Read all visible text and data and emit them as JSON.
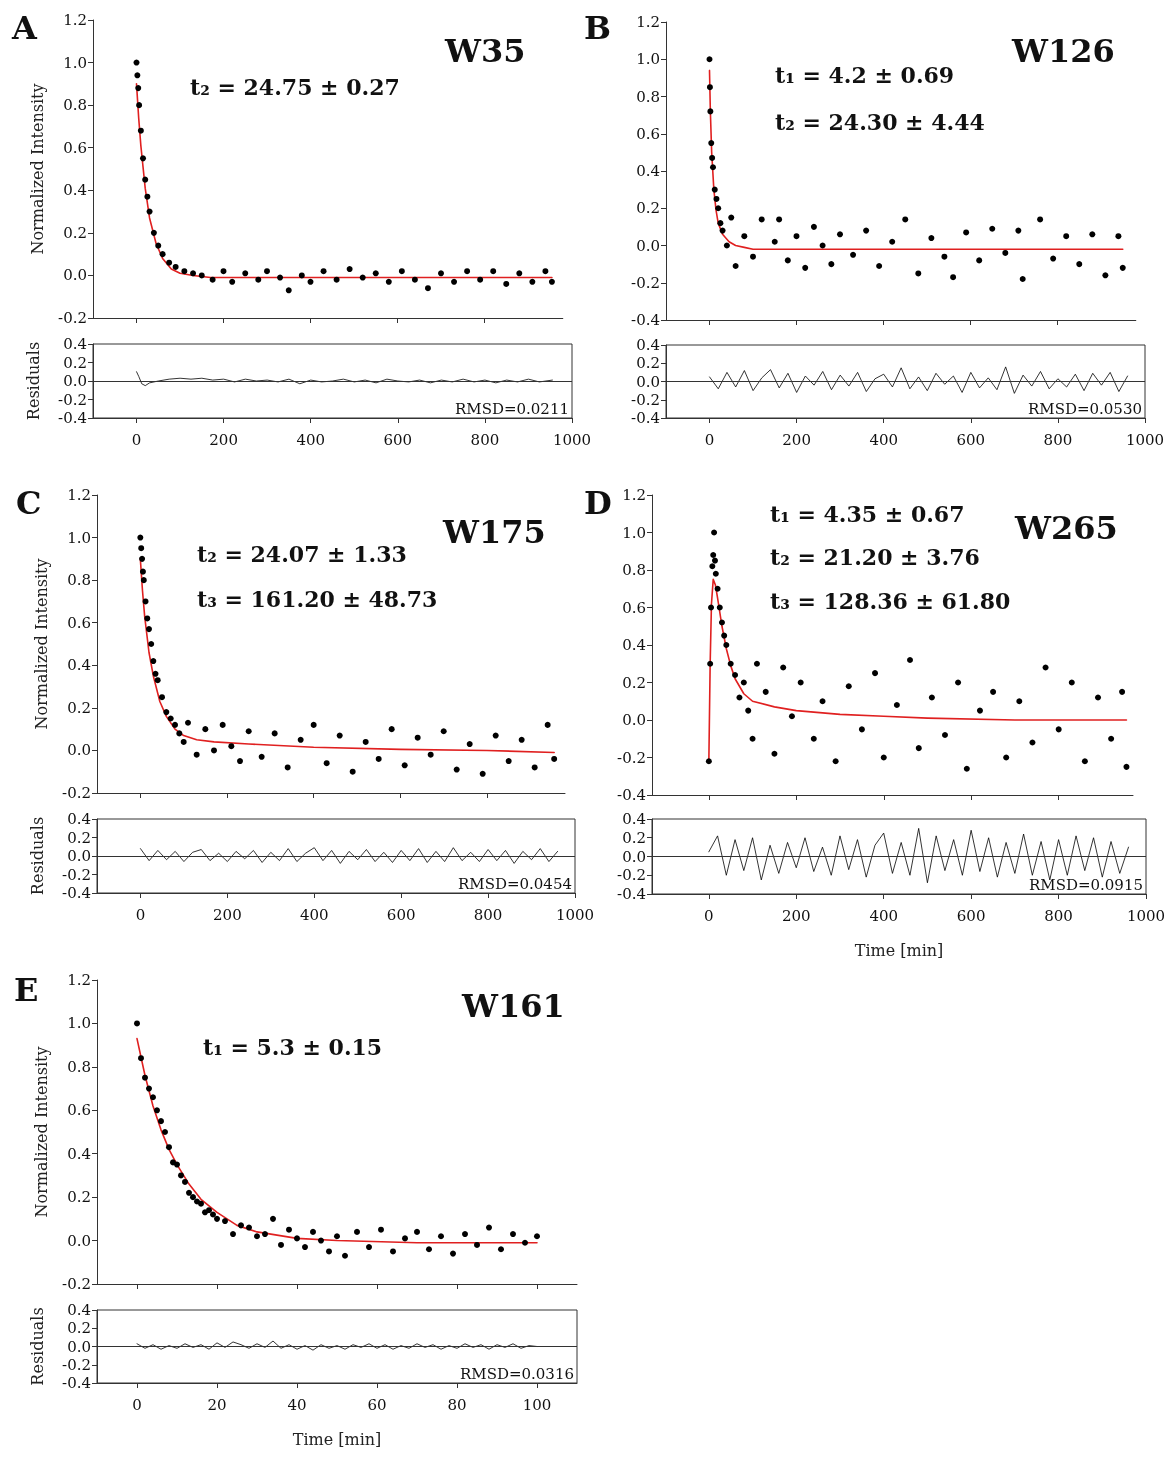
{
  "chart_data": [
    {
      "type": "scatter",
      "title": "W35",
      "ylabel": "Normalized Intensity",
      "annotations": [
        "A",
        "t₂ = 24.75 ± 0.27"
      ],
      "xlim": [
        -100,
        980
      ],
      "ylim": [
        -0.2,
        1.2
      ],
      "xticks": [
        0,
        200,
        400,
        600,
        800
      ],
      "yticks": [
        {
          "value": -0.2,
          "label": "-0.2"
        },
        {
          "value": 0,
          "label": "0.0"
        },
        {
          "value": 0.2,
          "label": "0.2"
        },
        {
          "value": 0.4,
          "label": "0.4"
        },
        {
          "value": 0.6,
          "label": "0.6"
        },
        {
          "value": 0.8,
          "label": "0.8"
        },
        {
          "value": 1,
          "label": "1.0"
        },
        {
          "value": 1.2,
          "label": "1.2"
        }
      ],
      "tick_labels": "y",
      "marker": "circle",
      "series": [
        {
          "type": "scatter",
          "color": "#000000",
          "x": [
            0,
            2,
            4,
            6,
            10,
            15,
            20,
            25,
            30,
            40,
            50,
            60,
            75,
            90,
            110,
            130,
            150,
            175,
            200,
            220,
            250,
            280,
            300,
            330,
            350,
            380,
            400,
            430,
            460,
            490,
            520,
            550,
            580,
            610,
            640,
            670,
            700,
            730,
            760,
            790,
            820,
            850,
            880,
            910,
            940,
            955
          ],
          "values": [
            1.0,
            0.94,
            0.88,
            0.8,
            0.68,
            0.55,
            0.45,
            0.37,
            0.3,
            0.2,
            0.14,
            0.1,
            0.06,
            0.04,
            0.02,
            0.01,
            0.0,
            -0.02,
            0.02,
            -0.03,
            0.01,
            -0.02,
            0.02,
            -0.01,
            -0.07,
            0.0,
            -0.03,
            0.02,
            -0.02,
            0.03,
            -0.01,
            0.01,
            -0.03,
            0.02,
            -0.02,
            -0.06,
            0.01,
            -0.03,
            0.02,
            -0.02,
            0.02,
            -0.04,
            0.01,
            -0.03,
            0.02,
            -0.03
          ]
        },
        {
          "type": "line",
          "marker": "none",
          "color": "#e02020",
          "x": [
            0,
            5,
            10,
            20,
            30,
            45,
            60,
            80,
            100,
            130,
            170,
            250,
            400,
            600,
            800,
            955
          ],
          "values": [
            0.9,
            0.74,
            0.61,
            0.41,
            0.27,
            0.15,
            0.08,
            0.03,
            0.01,
            0.0,
            -0.01,
            -0.01,
            -0.01,
            -0.01,
            -0.01,
            -0.01
          ]
        }
      ]
    },
    {
      "type": "line",
      "ylabel": "Residuals",
      "annotations": [
        "RMSD=0.0211"
      ],
      "xlim": [
        -100,
        1000
      ],
      "ylim": [
        -0.4,
        0.4
      ],
      "xticks": [
        0,
        200,
        400,
        600,
        800,
        1000
      ],
      "yticks": [
        {
          "value": -0.4,
          "label": "-0.4"
        },
        {
          "value": -0.2,
          "label": "-0.2"
        },
        {
          "value": 0,
          "label": "0.0"
        },
        {
          "value": 0.2,
          "label": "0.2"
        },
        {
          "value": 0.4,
          "label": "0.4"
        }
      ],
      "marker": "none",
      "ref_lines": [
        {
          "axis": "y",
          "value": 0
        }
      ],
      "series": [
        {
          "color": "#000000",
          "x": [
            0,
            5,
            12,
            20,
            30,
            50,
            75,
            100,
            125,
            150,
            175,
            200,
            225,
            250,
            275,
            300,
            325,
            350,
            375,
            400,
            425,
            450,
            475,
            500,
            525,
            550,
            575,
            600,
            625,
            650,
            675,
            700,
            725,
            750,
            775,
            800,
            825,
            850,
            875,
            900,
            925,
            955
          ],
          "values": [
            0.1,
            0.05,
            -0.03,
            -0.05,
            -0.02,
            0.0,
            0.02,
            0.03,
            0.02,
            0.03,
            0.01,
            0.02,
            -0.01,
            0.02,
            0.0,
            0.01,
            -0.01,
            0.02,
            -0.03,
            0.01,
            -0.01,
            0.0,
            0.02,
            -0.01,
            0.01,
            -0.02,
            0.02,
            0.0,
            -0.01,
            0.01,
            -0.02,
            0.01,
            -0.01,
            0.02,
            -0.01,
            0.01,
            -0.02,
            0.01,
            -0.01,
            0.02,
            -0.01,
            0.01
          ]
        }
      ]
    },
    {
      "type": "scatter",
      "title": "W126",
      "annotations": [
        "B",
        "t₁ = 4.2 ± 0.69",
        "t₂ = 24.30 ± 4.44"
      ],
      "xlim": [
        -100,
        980
      ],
      "ylim": [
        -0.4,
        1.2
      ],
      "xticks": [
        0,
        200,
        400,
        600,
        800
      ],
      "yticks": [
        {
          "value": -0.4,
          "label": "-0.4"
        },
        {
          "value": -0.2,
          "label": "-0.2"
        },
        {
          "value": 0,
          "label": "0.0"
        },
        {
          "value": 0.2,
          "label": "0.2"
        },
        {
          "value": 0.4,
          "label": "0.4"
        },
        {
          "value": 0.6,
          "label": "0.6"
        },
        {
          "value": 0.8,
          "label": "0.8"
        },
        {
          "value": 1,
          "label": "1.0"
        },
        {
          "value": 1.2,
          "label": "1.2"
        }
      ],
      "tick_labels": "y",
      "marker": "circle",
      "series": [
        {
          "type": "scatter",
          "color": "#000000",
          "x": [
            0,
            1,
            2,
            4,
            6,
            8,
            12,
            16,
            20,
            25,
            30,
            40,
            50,
            60,
            80,
            100,
            120,
            150,
            160,
            180,
            200,
            220,
            240,
            260,
            280,
            300,
            330,
            360,
            390,
            420,
            450,
            480,
            510,
            540,
            560,
            590,
            620,
            650,
            680,
            710,
            720,
            760,
            790,
            820,
            850,
            880,
            910,
            940,
            950
          ],
          "values": [
            1.0,
            0.85,
            0.72,
            0.55,
            0.47,
            0.42,
            0.3,
            0.25,
            0.2,
            0.12,
            0.08,
            0.0,
            0.15,
            -0.11,
            0.05,
            -0.06,
            0.14,
            0.02,
            0.14,
            -0.08,
            0.05,
            -0.12,
            0.1,
            0.0,
            -0.1,
            0.06,
            -0.05,
            0.08,
            -0.11,
            0.02,
            0.14,
            -0.15,
            0.04,
            -0.06,
            -0.17,
            0.07,
            -0.08,
            0.09,
            -0.04,
            0.08,
            -0.18,
            0.14,
            -0.07,
            0.05,
            -0.1,
            0.06,
            -0.16,
            0.05,
            -0.12
          ]
        },
        {
          "type": "line",
          "marker": "none",
          "color": "#e02020",
          "x": [
            0,
            2,
            5,
            10,
            15,
            20,
            30,
            45,
            60,
            80,
            100,
            150,
            300,
            500,
            700,
            950
          ],
          "values": [
            0.94,
            0.72,
            0.5,
            0.3,
            0.19,
            0.12,
            0.06,
            0.02,
            0.0,
            -0.01,
            -0.02,
            -0.02,
            -0.02,
            -0.02,
            -0.02,
            -0.02
          ]
        }
      ]
    },
    {
      "type": "line",
      "annotations": [
        "RMSD=0.0530"
      ],
      "xlim": [
        -100,
        1000
      ],
      "ylim": [
        -0.4,
        0.4
      ],
      "xticks": [
        0,
        200,
        400,
        600,
        800,
        1000
      ],
      "yticks": [
        {
          "value": -0.4,
          "label": "-0.4"
        },
        {
          "value": -0.2,
          "label": "-0.2"
        },
        {
          "value": 0,
          "label": "0.0"
        },
        {
          "value": 0.2,
          "label": "0.2"
        },
        {
          "value": 0.4,
          "label": "0.4"
        }
      ],
      "marker": "none",
      "ref_lines": [
        {
          "axis": "y",
          "value": 0
        }
      ],
      "series": [
        {
          "color": "#000000",
          "x": [
            0,
            20,
            40,
            60,
            80,
            100,
            120,
            140,
            160,
            180,
            200,
            220,
            240,
            260,
            280,
            300,
            320,
            340,
            360,
            380,
            400,
            420,
            440,
            460,
            480,
            500,
            520,
            540,
            560,
            580,
            600,
            620,
            640,
            660,
            680,
            700,
            720,
            740,
            760,
            780,
            800,
            820,
            840,
            860,
            880,
            900,
            920,
            940,
            960
          ],
          "values": [
            0.05,
            -0.08,
            0.1,
            -0.06,
            0.12,
            -0.1,
            0.04,
            0.13,
            -0.07,
            0.09,
            -0.12,
            0.06,
            -0.04,
            0.11,
            -0.09,
            0.07,
            -0.05,
            0.1,
            -0.11,
            0.03,
            0.08,
            -0.06,
            0.15,
            -0.08,
            0.05,
            -0.1,
            0.09,
            -0.03,
            0.06,
            -0.12,
            0.1,
            -0.07,
            0.04,
            -0.09,
            0.16,
            -0.13,
            0.07,
            -0.05,
            0.11,
            -0.08,
            0.03,
            -0.06,
            0.08,
            -0.1,
            0.09,
            -0.04,
            0.1,
            -0.11,
            0.06
          ]
        }
      ]
    },
    {
      "type": "scatter",
      "title": "W175",
      "ylabel": "Normalized Intensity",
      "annotations": [
        "C",
        "t₂ = 24.07 ± 1.33",
        "t₃ = 161.20 ± 48.73"
      ],
      "xlim": [
        -100,
        980
      ],
      "ylim": [
        -0.2,
        1.2
      ],
      "xticks": [
        0,
        200,
        400,
        600,
        800
      ],
      "yticks": [
        {
          "value": -0.2,
          "label": "-0.2"
        },
        {
          "value": 0,
          "label": "0.0"
        },
        {
          "value": 0.2,
          "label": "0.2"
        },
        {
          "value": 0.4,
          "label": "0.4"
        },
        {
          "value": 0.6,
          "label": "0.6"
        },
        {
          "value": 0.8,
          "label": "0.8"
        },
        {
          "value": 1,
          "label": "1.0"
        },
        {
          "value": 1.2,
          "label": "1.2"
        }
      ],
      "tick_labels": "y",
      "marker": "circle",
      "series": [
        {
          "type": "scatter",
          "color": "#000000",
          "x": [
            0,
            2,
            4,
            6,
            8,
            12,
            16,
            20,
            25,
            30,
            35,
            40,
            50,
            60,
            70,
            80,
            90,
            100,
            110,
            130,
            150,
            170,
            190,
            210,
            230,
            250,
            280,
            310,
            340,
            370,
            400,
            430,
            460,
            490,
            520,
            550,
            580,
            610,
            640,
            670,
            700,
            730,
            760,
            790,
            820,
            850,
            880,
            910,
            940,
            955
          ],
          "values": [
            1.0,
            0.95,
            0.9,
            0.84,
            0.8,
            0.7,
            0.62,
            0.57,
            0.5,
            0.42,
            0.36,
            0.33,
            0.25,
            0.18,
            0.15,
            0.12,
            0.08,
            0.04,
            0.13,
            -0.02,
            0.1,
            0.0,
            0.12,
            0.02,
            -0.05,
            0.09,
            -0.03,
            0.08,
            -0.08,
            0.05,
            0.12,
            -0.06,
            0.07,
            -0.1,
            0.04,
            -0.04,
            0.1,
            -0.07,
            0.06,
            -0.02,
            0.09,
            -0.09,
            0.03,
            -0.11,
            0.07,
            -0.05,
            0.05,
            -0.08,
            0.12,
            -0.04
          ]
        },
        {
          "type": "line",
          "marker": "none",
          "color": "#e02020",
          "x": [
            0,
            5,
            10,
            20,
            30,
            45,
            60,
            80,
            100,
            130,
            170,
            250,
            400,
            600,
            800,
            955
          ],
          "values": [
            0.9,
            0.75,
            0.63,
            0.46,
            0.35,
            0.23,
            0.16,
            0.1,
            0.07,
            0.05,
            0.04,
            0.03,
            0.015,
            0.005,
            0.0,
            -0.01
          ]
        }
      ]
    },
    {
      "type": "line",
      "ylabel": "Residuals",
      "annotations": [
        "RMSD=0.0454"
      ],
      "xlim": [
        -100,
        1000
      ],
      "ylim": [
        -0.4,
        0.4
      ],
      "xticks": [
        0,
        200,
        400,
        600,
        800,
        1000
      ],
      "yticks": [
        {
          "value": -0.4,
          "label": "-0.4"
        },
        {
          "value": -0.2,
          "label": "-0.2"
        },
        {
          "value": 0,
          "label": "0.0"
        },
        {
          "value": 0.2,
          "label": "0.2"
        },
        {
          "value": 0.4,
          "label": "0.4"
        }
      ],
      "marker": "none",
      "ref_lines": [
        {
          "axis": "y",
          "value": 0
        }
      ],
      "series": [
        {
          "color": "#000000",
          "x": [
            0,
            20,
            40,
            60,
            80,
            100,
            120,
            140,
            160,
            180,
            200,
            220,
            240,
            260,
            280,
            300,
            320,
            340,
            360,
            380,
            400,
            420,
            440,
            460,
            480,
            500,
            520,
            540,
            560,
            580,
            600,
            620,
            640,
            660,
            680,
            700,
            720,
            740,
            760,
            780,
            800,
            820,
            840,
            860,
            880,
            900,
            920,
            940,
            960
          ],
          "values": [
            0.08,
            -0.05,
            0.06,
            -0.04,
            0.05,
            -0.06,
            0.04,
            0.07,
            -0.05,
            0.03,
            -0.06,
            0.05,
            -0.03,
            0.06,
            -0.07,
            0.04,
            -0.05,
            0.08,
            -0.06,
            0.03,
            0.09,
            -0.05,
            0.06,
            -0.08,
            0.05,
            -0.04,
            0.07,
            -0.06,
            0.04,
            -0.07,
            0.06,
            -0.05,
            0.08,
            -0.07,
            0.05,
            -0.06,
            0.09,
            -0.05,
            0.04,
            -0.06,
            0.07,
            -0.05,
            0.06,
            -0.08,
            0.05,
            -0.04,
            0.08,
            -0.06,
            0.05
          ]
        }
      ]
    },
    {
      "type": "scatter",
      "title": "W265",
      "annotations": [
        "D",
        "t₁ = 4.35 ± 0.67",
        "t₂ = 21.20 ± 3.76",
        "t₃ = 128.36 ± 61.80"
      ],
      "xlim": [
        -130,
        970
      ],
      "ylim": [
        -0.4,
        1.2
      ],
      "xticks": [
        0,
        200,
        400,
        600,
        800
      ],
      "yticks": [
        {
          "value": -0.4,
          "label": "-0.4"
        },
        {
          "value": -0.2,
          "label": "-0.2"
        },
        {
          "value": 0,
          "label": "0.0"
        },
        {
          "value": 0.2,
          "label": "0.2"
        },
        {
          "value": 0.4,
          "label": "0.4"
        },
        {
          "value": 0.6,
          "label": "0.6"
        },
        {
          "value": 0.8,
          "label": "0.8"
        },
        {
          "value": 1,
          "label": "1.0"
        },
        {
          "value": 1.2,
          "label": "1.2"
        }
      ],
      "tick_labels": "y",
      "marker": "circle",
      "series": [
        {
          "type": "scatter",
          "color": "#000000",
          "x": [
            0,
            3,
            5,
            8,
            10,
            12,
            14,
            16,
            20,
            25,
            30,
            35,
            40,
            50,
            60,
            70,
            80,
            90,
            100,
            110,
            130,
            150,
            170,
            190,
            210,
            240,
            260,
            290,
            320,
            350,
            380,
            400,
            430,
            460,
            480,
            510,
            540,
            570,
            590,
            620,
            650,
            680,
            710,
            740,
            770,
            800,
            830,
            860,
            890,
            920,
            945,
            955
          ],
          "values": [
            -0.22,
            0.3,
            0.6,
            0.82,
            0.88,
            1.0,
            0.85,
            0.78,
            0.7,
            0.6,
            0.52,
            0.45,
            0.4,
            0.3,
            0.24,
            0.12,
            0.2,
            0.05,
            -0.1,
            0.3,
            0.15,
            -0.18,
            0.28,
            0.02,
            0.2,
            -0.1,
            0.1,
            -0.22,
            0.18,
            -0.05,
            0.25,
            -0.2,
            0.08,
            0.32,
            -0.15,
            0.12,
            -0.08,
            0.2,
            -0.26,
            0.05,
            0.15,
            -0.2,
            0.1,
            -0.12,
            0.28,
            -0.05,
            0.2,
            -0.22,
            0.12,
            -0.1,
            0.15,
            -0.25
          ]
        },
        {
          "type": "line",
          "marker": "none",
          "color": "#e02020",
          "x": [
            0,
            3,
            6,
            10,
            15,
            20,
            30,
            40,
            50,
            60,
            80,
            100,
            150,
            200,
            300,
            400,
            500,
            700,
            955
          ],
          "values": [
            -0.22,
            0.3,
            0.62,
            0.75,
            0.72,
            0.65,
            0.5,
            0.38,
            0.29,
            0.22,
            0.14,
            0.1,
            0.07,
            0.05,
            0.03,
            0.02,
            0.01,
            0.0,
            0.0
          ]
        }
      ]
    },
    {
      "type": "line",
      "xlabel": "Time [min]",
      "annotations": [
        "RMSD=0.0915"
      ],
      "xlim": [
        -130,
        1000
      ],
      "ylim": [
        -0.4,
        0.4
      ],
      "xticks": [
        0,
        200,
        400,
        600,
        800,
        1000
      ],
      "yticks": [
        {
          "value": -0.4,
          "label": "-0.4"
        },
        {
          "value": -0.2,
          "label": "-0.2"
        },
        {
          "value": 0,
          "label": "0.0"
        },
        {
          "value": 0.2,
          "label": "0.2"
        },
        {
          "value": 0.4,
          "label": "0.4"
        }
      ],
      "marker": "none",
      "ref_lines": [
        {
          "axis": "y",
          "value": 0
        }
      ],
      "series": [
        {
          "color": "#000000",
          "x": [
            0,
            20,
            40,
            60,
            80,
            100,
            120,
            140,
            160,
            180,
            200,
            220,
            240,
            260,
            280,
            300,
            320,
            340,
            360,
            380,
            400,
            420,
            440,
            460,
            480,
            500,
            520,
            540,
            560,
            580,
            600,
            620,
            640,
            660,
            680,
            700,
            720,
            740,
            760,
            780,
            800,
            820,
            840,
            860,
            880,
            900,
            920,
            940,
            960
          ],
          "values": [
            0.05,
            0.22,
            -0.2,
            0.18,
            -0.15,
            0.2,
            -0.25,
            0.12,
            -0.18,
            0.15,
            -0.12,
            0.2,
            -0.16,
            0.1,
            -0.2,
            0.22,
            -0.14,
            0.18,
            -0.22,
            0.12,
            0.25,
            -0.18,
            0.15,
            -0.2,
            0.3,
            -0.28,
            0.22,
            -0.15,
            0.18,
            -0.2,
            0.28,
            -0.16,
            0.2,
            -0.22,
            0.15,
            -0.18,
            0.24,
            -0.2,
            0.16,
            -0.25,
            0.18,
            -0.2,
            0.22,
            -0.15,
            0.2,
            -0.22,
            0.16,
            -0.18,
            0.1
          ]
        }
      ]
    },
    {
      "type": "scatter",
      "title": "W161",
      "ylabel": "Normalized Intensity",
      "annotations": [
        "E",
        "t₁ = 5.3 ± 0.15"
      ],
      "xlim": [
        -10,
        110
      ],
      "ylim": [
        -0.2,
        1.2
      ],
      "xticks": [
        0,
        20,
        40,
        60,
        80,
        100
      ],
      "yticks": [
        {
          "value": -0.2,
          "label": "-0.2"
        },
        {
          "value": 0,
          "label": "0.0"
        },
        {
          "value": 0.2,
          "label": "0.2"
        },
        {
          "value": 0.4,
          "label": "0.4"
        },
        {
          "value": 0.6,
          "label": "0.6"
        },
        {
          "value": 0.8,
          "label": "0.8"
        },
        {
          "value": 1,
          "label": "1.0"
        },
        {
          "value": 1.2,
          "label": "1.2"
        }
      ],
      "tick_labels": "y",
      "marker": "circle",
      "series": [
        {
          "type": "scatter",
          "color": "#000000",
          "x": [
            0,
            1,
            2,
            3,
            4,
            5,
            6,
            7,
            8,
            9,
            10,
            11,
            12,
            13,
            14,
            15,
            16,
            17,
            18,
            19,
            20,
            22,
            24,
            26,
            28,
            30,
            32,
            34,
            36,
            38,
            40,
            42,
            44,
            46,
            48,
            50,
            52,
            55,
            58,
            61,
            64,
            67,
            70,
            73,
            76,
            79,
            82,
            85,
            88,
            91,
            94,
            97,
            100
          ],
          "values": [
            1.0,
            0.84,
            0.75,
            0.7,
            0.66,
            0.6,
            0.55,
            0.5,
            0.43,
            0.36,
            0.35,
            0.3,
            0.27,
            0.22,
            0.2,
            0.18,
            0.17,
            0.13,
            0.14,
            0.12,
            0.1,
            0.09,
            0.03,
            0.07,
            0.06,
            0.02,
            0.03,
            0.1,
            -0.02,
            0.05,
            0.01,
            -0.03,
            0.04,
            0.0,
            -0.05,
            0.02,
            -0.07,
            0.04,
            -0.03,
            0.05,
            -0.05,
            0.01,
            0.04,
            -0.04,
            0.02,
            -0.06,
            0.03,
            -0.02,
            0.06,
            -0.04,
            0.03,
            -0.01,
            0.02
          ]
        },
        {
          "type": "line",
          "marker": "none",
          "color": "#e02020",
          "x": [
            0,
            2,
            4,
            6,
            8,
            10,
            13,
            16,
            20,
            25,
            30,
            40,
            50,
            70,
            100
          ],
          "values": [
            0.93,
            0.76,
            0.62,
            0.51,
            0.42,
            0.35,
            0.26,
            0.19,
            0.13,
            0.07,
            0.04,
            0.01,
            0.0,
            -0.01,
            -0.01
          ]
        }
      ]
    },
    {
      "type": "line",
      "ylabel": "Residuals",
      "xlabel": "Time [min]",
      "annotations": [
        "RMSD=0.0316"
      ],
      "xlim": [
        -10,
        110
      ],
      "ylim": [
        -0.4,
        0.4
      ],
      "xticks": [
        0,
        20,
        40,
        60,
        80,
        100
      ],
      "yticks": [
        {
          "value": -0.4,
          "label": "-0.4"
        },
        {
          "value": -0.2,
          "label": "-0.2"
        },
        {
          "value": 0,
          "label": "0.0"
        },
        {
          "value": 0.2,
          "label": "0.2"
        },
        {
          "value": 0.4,
          "label": "0.4"
        }
      ],
      "marker": "none",
      "ref_lines": [
        {
          "axis": "y",
          "value": 0
        }
      ],
      "series": [
        {
          "color": "#000000",
          "x": [
            0,
            2,
            4,
            6,
            8,
            10,
            12,
            14,
            16,
            18,
            20,
            22,
            24,
            26,
            28,
            30,
            32,
            34,
            36,
            38,
            40,
            42,
            44,
            46,
            48,
            50,
            52,
            54,
            56,
            58,
            60,
            62,
            64,
            66,
            68,
            70,
            72,
            74,
            76,
            78,
            80,
            82,
            84,
            86,
            88,
            90,
            92,
            94,
            96,
            98,
            100
          ],
          "values": [
            0.03,
            -0.02,
            0.02,
            -0.03,
            0.01,
            -0.02,
            0.03,
            -0.01,
            0.02,
            -0.03,
            0.04,
            -0.01,
            0.05,
            0.02,
            -0.02,
            0.03,
            -0.01,
            0.06,
            -0.02,
            0.02,
            -0.03,
            0.01,
            -0.04,
            0.02,
            -0.02,
            0.01,
            -0.03,
            0.02,
            -0.01,
            0.03,
            -0.02,
            0.02,
            -0.03,
            0.01,
            -0.02,
            0.03,
            -0.01,
            0.02,
            -0.03,
            0.01,
            -0.02,
            0.03,
            -0.01,
            0.02,
            -0.03,
            0.02,
            -0.01,
            0.03,
            -0.02,
            0.01,
            0.0
          ]
        }
      ]
    }
  ]
}
